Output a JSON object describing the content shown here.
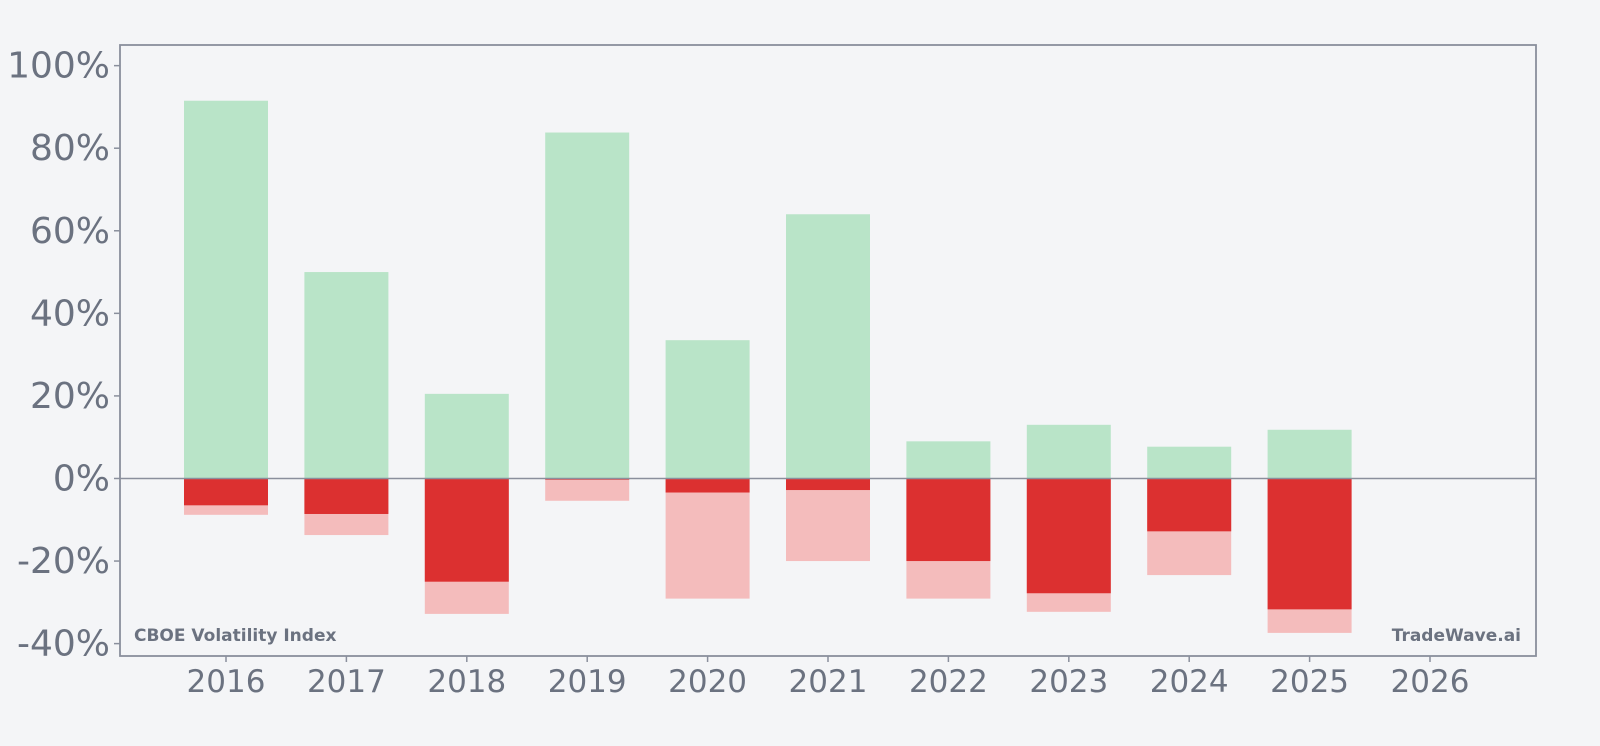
{
  "chart_data": {
    "type": "bar",
    "title": "",
    "xlabel": "",
    "ylabel": "",
    "categories": [
      "2016",
      "2017",
      "2018",
      "2019",
      "2020",
      "2021",
      "2022",
      "2023",
      "2024",
      "2025",
      "2026"
    ],
    "ylim": [
      -43,
      105
    ],
    "yticks": [
      100,
      80,
      60,
      40,
      20,
      0,
      -20,
      -40
    ],
    "ytick_labels": [
      "100%",
      "80%",
      "60%",
      "40%",
      "20%",
      "0%",
      "-20%",
      "-40%"
    ],
    "series": [
      {
        "values": [
          91.5,
          50,
          20.5,
          83.8,
          33.5,
          64,
          9,
          13,
          7.7,
          11.8,
          null
        ]
      },
      {
        "values": [
          -6.5,
          -8.6,
          -25,
          -0.3,
          -3.4,
          -2.8,
          -20,
          -27.8,
          -12.8,
          -31.7,
          null
        ]
      },
      {
        "values": [
          -8.8,
          -13.7,
          -32.8,
          -5.4,
          -29.1,
          -20,
          -29.1,
          -32.3,
          -23.4,
          -37.4,
          null
        ]
      }
    ],
    "colors": {
      "positive": "#b9e4c8",
      "negative_dark": "#dc3030",
      "negative_light": "#f4bcbc",
      "zero_line": "#8a8f9c",
      "frame": "#8a8f9c",
      "text": "#6b7280",
      "background": "#f4f5f7"
    },
    "grid": false,
    "legend": "none",
    "annotations": {
      "bottom_left": "CBOE Volatility Index",
      "bottom_right": "TradeWave.ai"
    }
  }
}
